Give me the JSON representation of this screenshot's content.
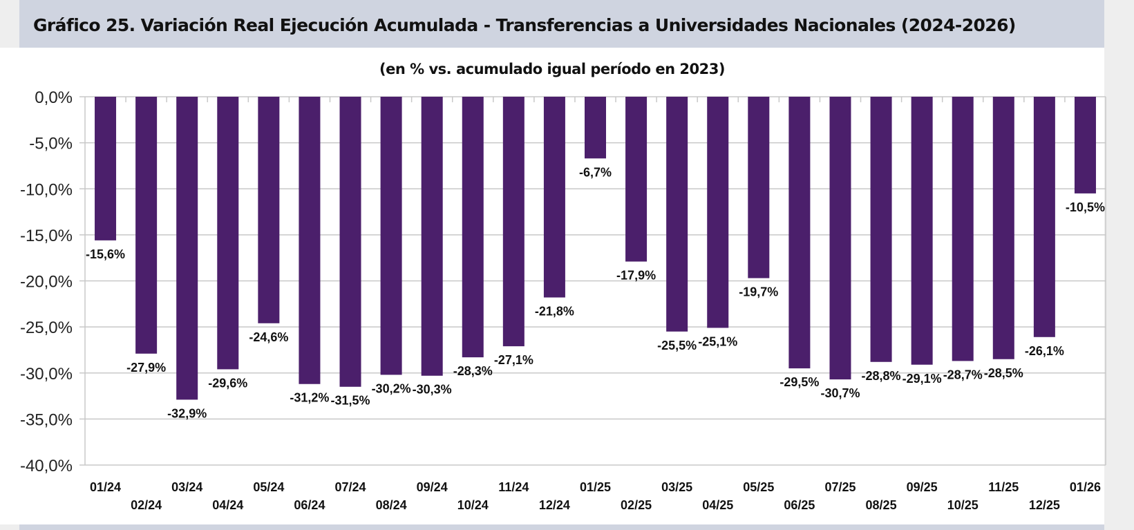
{
  "header": {
    "title": "Gráfico 25. Variación Real Ejecución Acumulada - Transferencias a Universidades Nacionales (2024-2026)"
  },
  "colors": {
    "bar": "#4b1f6b",
    "title_band": "#cfd4e0",
    "grid": "#c8c8c8"
  },
  "chart_data": {
    "type": "bar",
    "title": "Gráfico 25. Variación Real Ejecución Acumulada - Transferencias a Universidades Nacionales (2024-2026)",
    "subtitle": "(en % vs. acumulado igual período en 2023)",
    "xlabel": "",
    "ylabel": "",
    "ylim": [
      -40,
      0
    ],
    "yticks": [
      0,
      -5,
      -10,
      -15,
      -20,
      -25,
      -30,
      -35,
      -40
    ],
    "ytick_labels": [
      "0,0%",
      "-5,0%",
      "-10,0%",
      "-15,0%",
      "-20,0%",
      "-25,0%",
      "-30,0%",
      "-35,0%",
      "-40,0%"
    ],
    "grid": true,
    "legend": "none",
    "categories": [
      "01/24",
      "02/24",
      "03/24",
      "04/24",
      "05/24",
      "06/24",
      "07/24",
      "08/24",
      "09/24",
      "10/24",
      "11/24",
      "12/24",
      "01/25",
      "02/25",
      "03/25",
      "04/25",
      "05/25",
      "06/25",
      "07/25",
      "08/25",
      "09/25",
      "10/25",
      "11/25",
      "12/25",
      "01/26"
    ],
    "values": [
      -15.6,
      -27.9,
      -32.9,
      -29.6,
      -24.6,
      -31.2,
      -31.5,
      -30.2,
      -30.3,
      -28.3,
      -27.1,
      -21.8,
      -6.7,
      -17.9,
      -25.5,
      -25.1,
      -19.7,
      -29.5,
      -30.7,
      -28.8,
      -29.1,
      -28.7,
      -28.5,
      -26.1,
      -10.5
    ],
    "data_labels": [
      "-15,6%",
      "-27,9%",
      "-32,9%",
      "-29,6%",
      "-24,6%",
      "-31,2%",
      "-31,5%",
      "-30,2%",
      "-30,3%",
      "-28,3%",
      "-27,1%",
      "-21,8%",
      "-6,7%",
      "-17,9%",
      "-25,5%",
      "-25,1%",
      "-19,7%",
      "-29,5%",
      "-30,7%",
      "-28,8%",
      "-29,1%",
      "-28,7%",
      "-28,5%",
      "-26,1%",
      "-10,5%"
    ]
  }
}
